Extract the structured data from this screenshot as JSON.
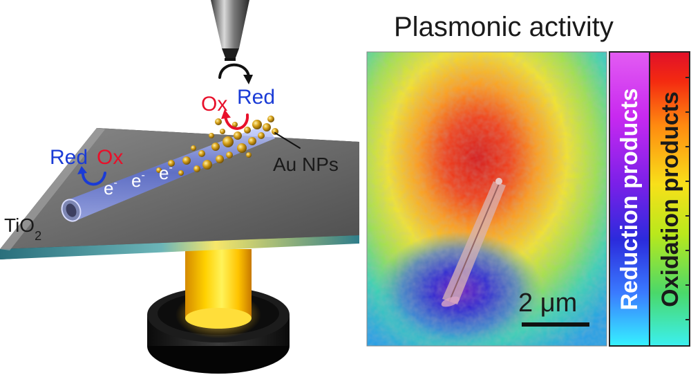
{
  "title": "Plasmonic activity",
  "labels": {
    "ox_top": "Ox",
    "red_top": "Red",
    "red_left": "Red",
    "ox_left": "Ox",
    "electron": "e",
    "electron_sup": "-",
    "au": "Au NPs",
    "tio_main": "TiO",
    "tio_sub": "2"
  },
  "scalebar": {
    "label": "2 μm"
  },
  "colorbar": {
    "left_label": "Reduction products",
    "right_label": "Oxidation products"
  },
  "colors": {
    "red_text": "#e8102a",
    "blue_text": "#1a3bd6",
    "light": "#ffd21a"
  }
}
